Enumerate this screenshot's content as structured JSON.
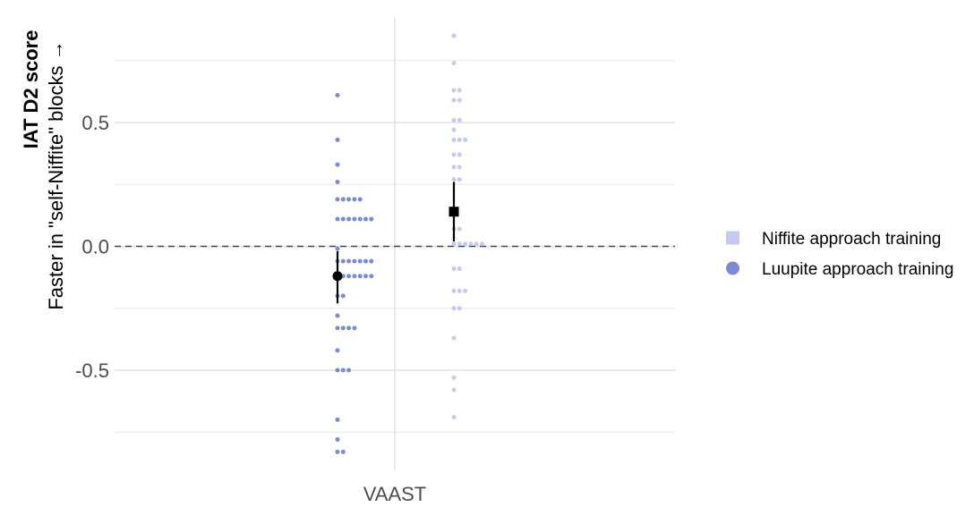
{
  "chart_data": {
    "type": "scatter",
    "title": "",
    "xlabel": "",
    "ylabel": {
      "title": "IAT D2 score",
      "subtitle": "Faster in \"self-Niffite\" blocks →"
    },
    "categories": [
      "VAAST"
    ],
    "ylim": [
      -0.82,
      0.85
    ],
    "yticks": [
      0.5,
      0.0,
      -0.5
    ],
    "ytick_labels": [
      "0.5",
      "0.0",
      "-0.5"
    ],
    "reference_line": 0.0,
    "grid": true,
    "legend_position": "right",
    "series": [
      {
        "name": "Niffite approach training",
        "marker": "square",
        "color": "#c5cbf0",
        "points": [
          0.85,
          0.74,
          0.63,
          0.63,
          0.59,
          0.59,
          0.51,
          0.51,
          0.47,
          0.43,
          0.43,
          0.43,
          0.37,
          0.37,
          0.32,
          0.32,
          0.27,
          0.27,
          0.07,
          0.07,
          0.01,
          0.01,
          0.01,
          0.01,
          0.01,
          0.01,
          -0.09,
          -0.09,
          -0.18,
          -0.18,
          -0.18,
          -0.25,
          -0.25,
          -0.37,
          -0.53,
          -0.58,
          -0.69
        ],
        "summary": {
          "mean": 0.14,
          "lower": 0.02,
          "upper": 0.26
        }
      },
      {
        "name": "Luupite approach training",
        "marker": "circle",
        "color": "#7b8ad6",
        "points": [
          0.61,
          0.43,
          0.33,
          0.26,
          0.19,
          0.19,
          0.19,
          0.19,
          0.19,
          0.11,
          0.11,
          0.11,
          0.11,
          0.11,
          0.11,
          0.11,
          -0.01,
          -0.06,
          -0.06,
          -0.06,
          -0.06,
          -0.06,
          -0.06,
          -0.06,
          -0.12,
          -0.12,
          -0.12,
          -0.12,
          -0.12,
          -0.12,
          -0.12,
          -0.2,
          -0.2,
          -0.28,
          -0.33,
          -0.33,
          -0.33,
          -0.33,
          -0.42,
          -0.5,
          -0.5,
          -0.5,
          -0.7,
          -0.78,
          -0.83,
          -0.83
        ],
        "summary": {
          "mean": -0.12,
          "lower": -0.23,
          "upper": -0.02
        }
      }
    ]
  }
}
